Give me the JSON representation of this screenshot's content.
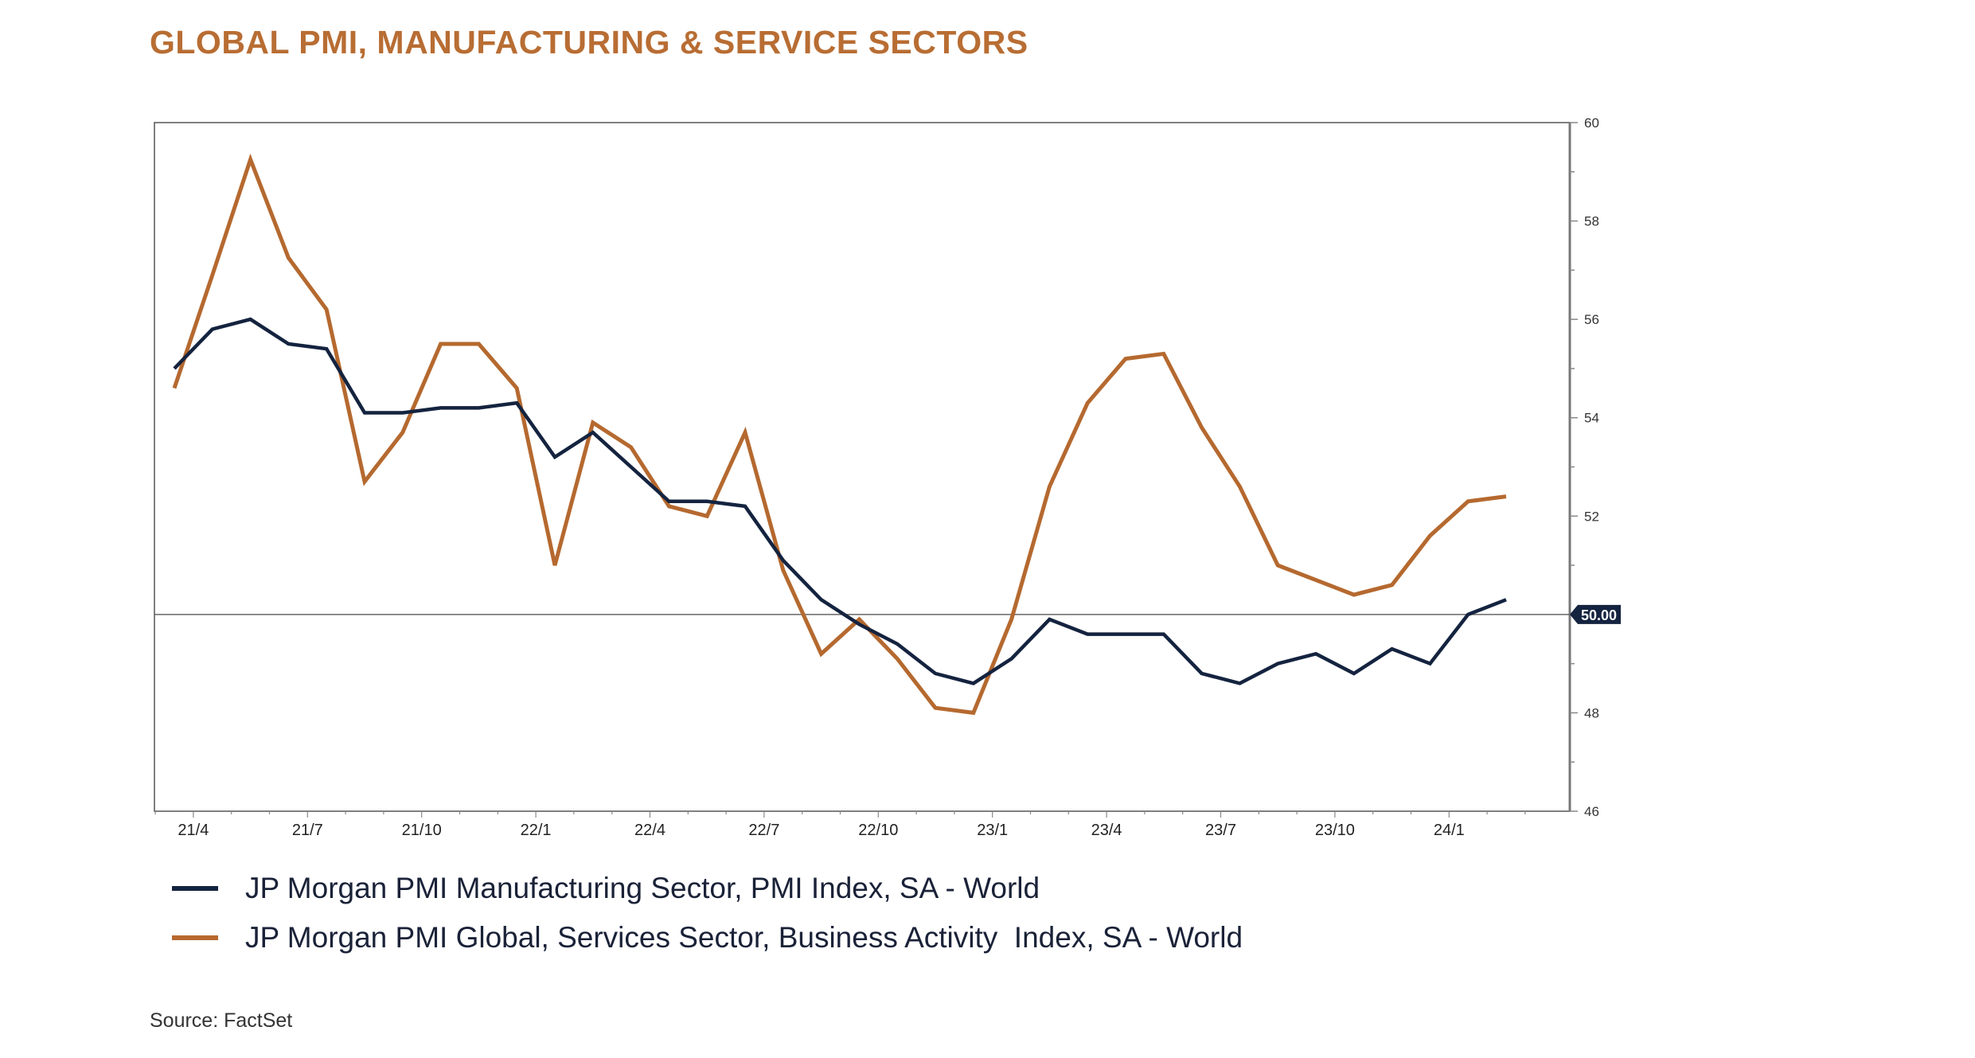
{
  "chart_data": {
    "type": "line",
    "title": "GLOBAL PMI, MANUFACTURING & SERVICE SECTORS",
    "xlabel": "",
    "ylabel": "",
    "x": [
      "21/3",
      "21/4",
      "21/5",
      "21/6",
      "21/7",
      "21/8",
      "21/9",
      "21/10",
      "21/11",
      "21/12",
      "22/1",
      "22/2",
      "22/3",
      "22/4",
      "22/5",
      "22/6",
      "22/7",
      "22/8",
      "22/9",
      "22/10",
      "22/11",
      "22/12",
      "23/1",
      "23/2",
      "23/3",
      "23/4",
      "23/5",
      "23/6",
      "23/7",
      "23/8",
      "23/9",
      "23/10",
      "23/11",
      "23/12",
      "24/1",
      "24/2"
    ],
    "x_tick_labels": [
      "21/4",
      "21/7",
      "21/10",
      "22/1",
      "22/4",
      "22/7",
      "22/10",
      "23/1",
      "23/4",
      "23/7",
      "23/10",
      "24/1"
    ],
    "y_tick_labels": [
      "60",
      "58",
      "56",
      "54",
      "52",
      "48",
      "46"
    ],
    "ylim": [
      46,
      60
    ],
    "y_axis_side": "right",
    "grid": false,
    "legend_position": "bottom",
    "reference_line": {
      "value": 50,
      "label": "50.00"
    },
    "series": [
      {
        "name": "JP Morgan PMI Manufacturing Sector, PMI Index, SA - World",
        "color": "#14233f",
        "values": [
          55.0,
          55.8,
          56.0,
          55.5,
          55.4,
          54.1,
          54.1,
          54.2,
          54.2,
          54.3,
          53.2,
          53.7,
          53.0,
          52.3,
          52.3,
          52.2,
          51.1,
          50.3,
          49.8,
          49.4,
          48.8,
          48.6,
          49.1,
          49.9,
          49.6,
          49.6,
          49.6,
          48.8,
          48.6,
          49.0,
          49.2,
          48.8,
          49.3,
          49.0,
          50.0,
          50.3
        ]
      },
      {
        "name": "JP Morgan PMI Global, Services Sector, Business Activity  Index, SA - World",
        "color": "#b5692f",
        "values": [
          54.6,
          56.9,
          59.25,
          57.25,
          56.2,
          52.7,
          53.7,
          55.5,
          55.5,
          54.6,
          51.0,
          53.9,
          53.4,
          52.2,
          52.0,
          53.7,
          50.9,
          49.2,
          49.9,
          49.1,
          48.1,
          48.0,
          49.9,
          52.6,
          54.3,
          55.2,
          55.3,
          53.8,
          52.6,
          51.0,
          50.7,
          50.4,
          50.6,
          51.6,
          52.3,
          52.4
        ]
      }
    ]
  },
  "source": "Source: FactSet",
  "colors": {
    "title": "#b86d33",
    "axis": "#777777"
  }
}
